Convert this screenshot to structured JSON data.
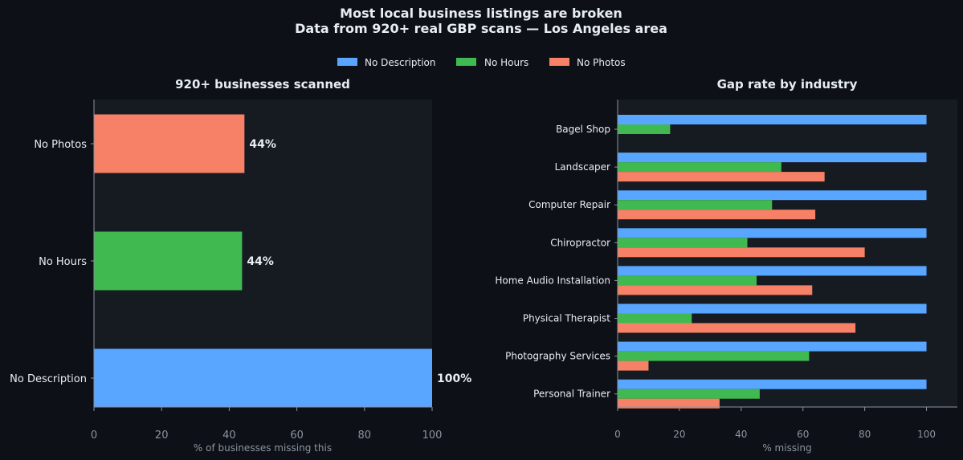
{
  "title_line1": "Most local business listings are broken",
  "title_line2": "Data from 920+ real GBP scans — Los Angeles area",
  "legend": [
    {
      "label": "No Description",
      "color": "#58a6ff"
    },
    {
      "label": "No Hours",
      "color": "#3fb950"
    },
    {
      "label": "No Photos",
      "color": "#f78166"
    }
  ],
  "chart_data": [
    {
      "type": "bar",
      "orientation": "horizontal",
      "title": "920+ businesses scanned",
      "xlabel": "% of businesses missing this",
      "ylabel": "",
      "xlim": [
        0,
        100
      ],
      "xticks": [
        0,
        20,
        40,
        60,
        80,
        100
      ],
      "categories": [
        "No Photos",
        "No Hours",
        "No Description"
      ],
      "values": [
        44.5,
        43.8,
        100
      ],
      "data_labels": [
        "44%",
        "44%",
        "100%"
      ],
      "colors": [
        "#f78166",
        "#3fb950",
        "#58a6ff"
      ],
      "grid": false
    },
    {
      "type": "bar",
      "orientation": "horizontal",
      "title": "Gap rate by industry",
      "xlabel": "% missing",
      "ylabel": "",
      "xlim": [
        0,
        110
      ],
      "xticks": [
        0,
        20,
        40,
        60,
        80,
        100
      ],
      "categories": [
        "Bagel Shop",
        "Landscaper",
        "Computer Repair",
        "Chiropractor",
        "Home Audio Installation",
        "Physical Therapist",
        "Photography Services",
        "Personal Trainer"
      ],
      "series": [
        {
          "name": "No Description",
          "color": "#58a6ff",
          "values": [
            100,
            100,
            100,
            100,
            100,
            100,
            100,
            100
          ]
        },
        {
          "name": "No Hours",
          "color": "#3fb950",
          "values": [
            17,
            53,
            50,
            42,
            45,
            24,
            62,
            46
          ]
        },
        {
          "name": "No Photos",
          "color": "#f78166",
          "values": [
            0,
            67,
            64,
            80,
            63,
            77,
            10,
            33
          ]
        }
      ],
      "legend_position": "top-center",
      "grid": false
    }
  ]
}
